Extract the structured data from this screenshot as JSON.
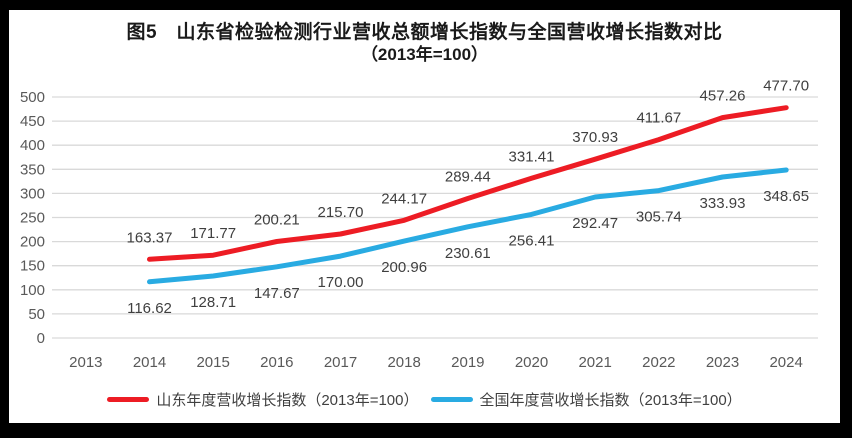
{
  "chart": {
    "title_line1": "图5　山东省检验检测行业营收总额增长指数与全国营收增长指数对比",
    "title_line2": "（2013年=100）"
  },
  "legend": {
    "items": [
      {
        "label": "山东年度营收增长指数（2013年=100）",
        "color": "#ed1c24"
      },
      {
        "label": "全国年度营收增长指数（2013年=100）",
        "color": "#29abe2"
      }
    ]
  },
  "chart_data": {
    "type": "line",
    "title": "图5 山东省检验检测行业营收总额增长指数与全国营收增长指数对比（2013年=100）",
    "categories": [
      "2013",
      "2014",
      "2015",
      "2016",
      "2017",
      "2018",
      "2019",
      "2020",
      "2021",
      "2022",
      "2023",
      "2024"
    ],
    "series": [
      {
        "name": "山东年度营收增长指数（2013年=100）",
        "color": "#ed1c24",
        "label_position": "above",
        "values": [
          null,
          163.37,
          171.77,
          200.21,
          215.7,
          244.17,
          289.44,
          331.41,
          370.93,
          411.67,
          457.26,
          477.7
        ]
      },
      {
        "name": "全国年度营收增长指数（2013年=100）",
        "color": "#29abe2",
        "label_position": "below",
        "values": [
          null,
          116.62,
          128.71,
          147.67,
          170.0,
          200.96,
          230.61,
          256.41,
          292.47,
          305.74,
          333.93,
          348.65
        ]
      }
    ],
    "ylim": [
      0,
      500
    ],
    "ytick_step": 50,
    "grid": "horizontal",
    "legend_position": "bottom",
    "data_labels": true,
    "data_label_decimals": 2
  },
  "colors": {
    "frame_background": "#000000",
    "card_background": "#ffffff",
    "gridline": "#d9d9d9",
    "tick_label": "#595959",
    "data_label": "#3f3f3f",
    "title_text": "#1a1a1a",
    "legend_text": "#404040"
  }
}
